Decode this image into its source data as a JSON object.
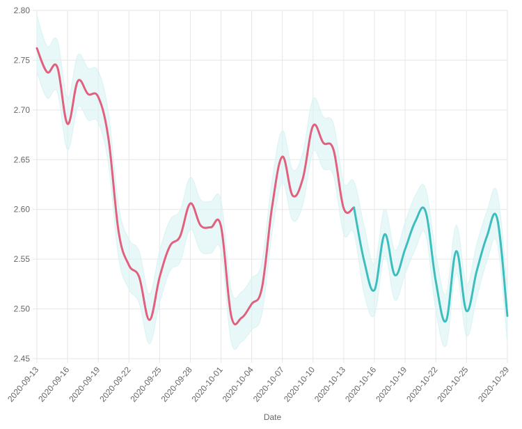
{
  "chart_data": {
    "type": "line",
    "title": "",
    "xlabel": "Date",
    "ylabel": "",
    "ylim": [
      2.45,
      2.8
    ],
    "yticks": [
      "2.80",
      "2.75",
      "2.70",
      "2.65",
      "2.60",
      "2.55",
      "2.50",
      "2.45"
    ],
    "xticks": [
      "2020-09-13",
      "2020-09-16",
      "2020-09-19",
      "2020-09-22",
      "2020-09-25",
      "2020-09-28",
      "2020-10-01",
      "2020-10-04",
      "2020-10-07",
      "2020-10-10",
      "2020-10-13",
      "2020-10-16",
      "2020-10-19",
      "2020-10-22",
      "2020-10-25",
      "2020-10-29"
    ],
    "grid": true,
    "colors": {
      "history": "#e0607e",
      "forecast": "#3dbdbd",
      "band": "#d8f3f3",
      "grid": "#e6e6e6"
    },
    "series": [
      {
        "type": "actual",
        "x": [
          "2020-09-13",
          "2020-09-14",
          "2020-09-15",
          "2020-09-16",
          "2020-09-17",
          "2020-09-18",
          "2020-09-19",
          "2020-09-20",
          "2020-09-21",
          "2020-09-22",
          "2020-09-23",
          "2020-09-24",
          "2020-09-25",
          "2020-09-26",
          "2020-09-27",
          "2020-09-28",
          "2020-09-29",
          "2020-09-30",
          "2020-10-01",
          "2020-10-02",
          "2020-10-03",
          "2020-10-04",
          "2020-10-05",
          "2020-10-06",
          "2020-10-07",
          "2020-10-08",
          "2020-10-09",
          "2020-10-10",
          "2020-10-11",
          "2020-10-12",
          "2020-10-13",
          "2020-10-14"
        ],
        "values": [
          2.762,
          2.738,
          2.743,
          2.686,
          2.729,
          2.716,
          2.713,
          2.671,
          2.577,
          2.544,
          2.532,
          2.489,
          2.532,
          2.563,
          2.573,
          2.606,
          2.584,
          2.582,
          2.583,
          2.493,
          2.491,
          2.505,
          2.521,
          2.603,
          2.653,
          2.614,
          2.631,
          2.684,
          2.667,
          2.66,
          2.601,
          2.602
        ]
      },
      {
        "type": "forecast",
        "x": [
          "2020-10-14",
          "2020-10-15",
          "2020-10-16",
          "2020-10-17",
          "2020-10-18",
          "2020-10-19",
          "2020-10-20",
          "2020-10-21",
          "2020-10-22",
          "2020-10-23",
          "2020-10-24",
          "2020-10-25",
          "2020-10-26",
          "2020-10-27",
          "2020-10-28",
          "2020-10-29"
        ],
        "values": [
          2.602,
          2.548,
          2.519,
          2.575,
          2.534,
          2.56,
          2.588,
          2.598,
          2.528,
          2.488,
          2.558,
          2.498,
          2.538,
          2.573,
          2.591,
          2.493
        ],
        "lower": [
          2.576,
          2.515,
          2.494,
          2.553,
          2.509,
          2.535,
          2.56,
          2.575,
          2.499,
          2.463,
          2.536,
          2.473,
          2.511,
          2.548,
          2.566,
          2.466
        ],
        "upper": [
          2.628,
          2.583,
          2.545,
          2.6,
          2.559,
          2.587,
          2.614,
          2.621,
          2.556,
          2.515,
          2.584,
          2.525,
          2.565,
          2.598,
          2.617,
          2.52
        ]
      }
    ],
    "band_actual": {
      "lower": [
        2.738,
        2.712,
        2.718,
        2.66,
        2.703,
        2.69,
        2.687,
        2.645,
        2.551,
        2.52,
        2.506,
        2.465,
        2.506,
        2.538,
        2.547,
        2.58,
        2.558,
        2.556,
        2.558,
        2.467,
        2.467,
        2.479,
        2.495,
        2.577,
        2.627,
        2.589,
        2.605,
        2.658,
        2.641,
        2.634,
        2.575,
        2.576
      ],
      "upper": [
        2.795,
        2.764,
        2.77,
        2.712,
        2.755,
        2.742,
        2.739,
        2.697,
        2.603,
        2.57,
        2.558,
        2.515,
        2.558,
        2.589,
        2.599,
        2.632,
        2.61,
        2.608,
        2.609,
        2.519,
        2.517,
        2.531,
        2.547,
        2.629,
        2.679,
        2.64,
        2.657,
        2.711,
        2.693,
        2.686,
        2.627,
        2.628
      ]
    }
  }
}
